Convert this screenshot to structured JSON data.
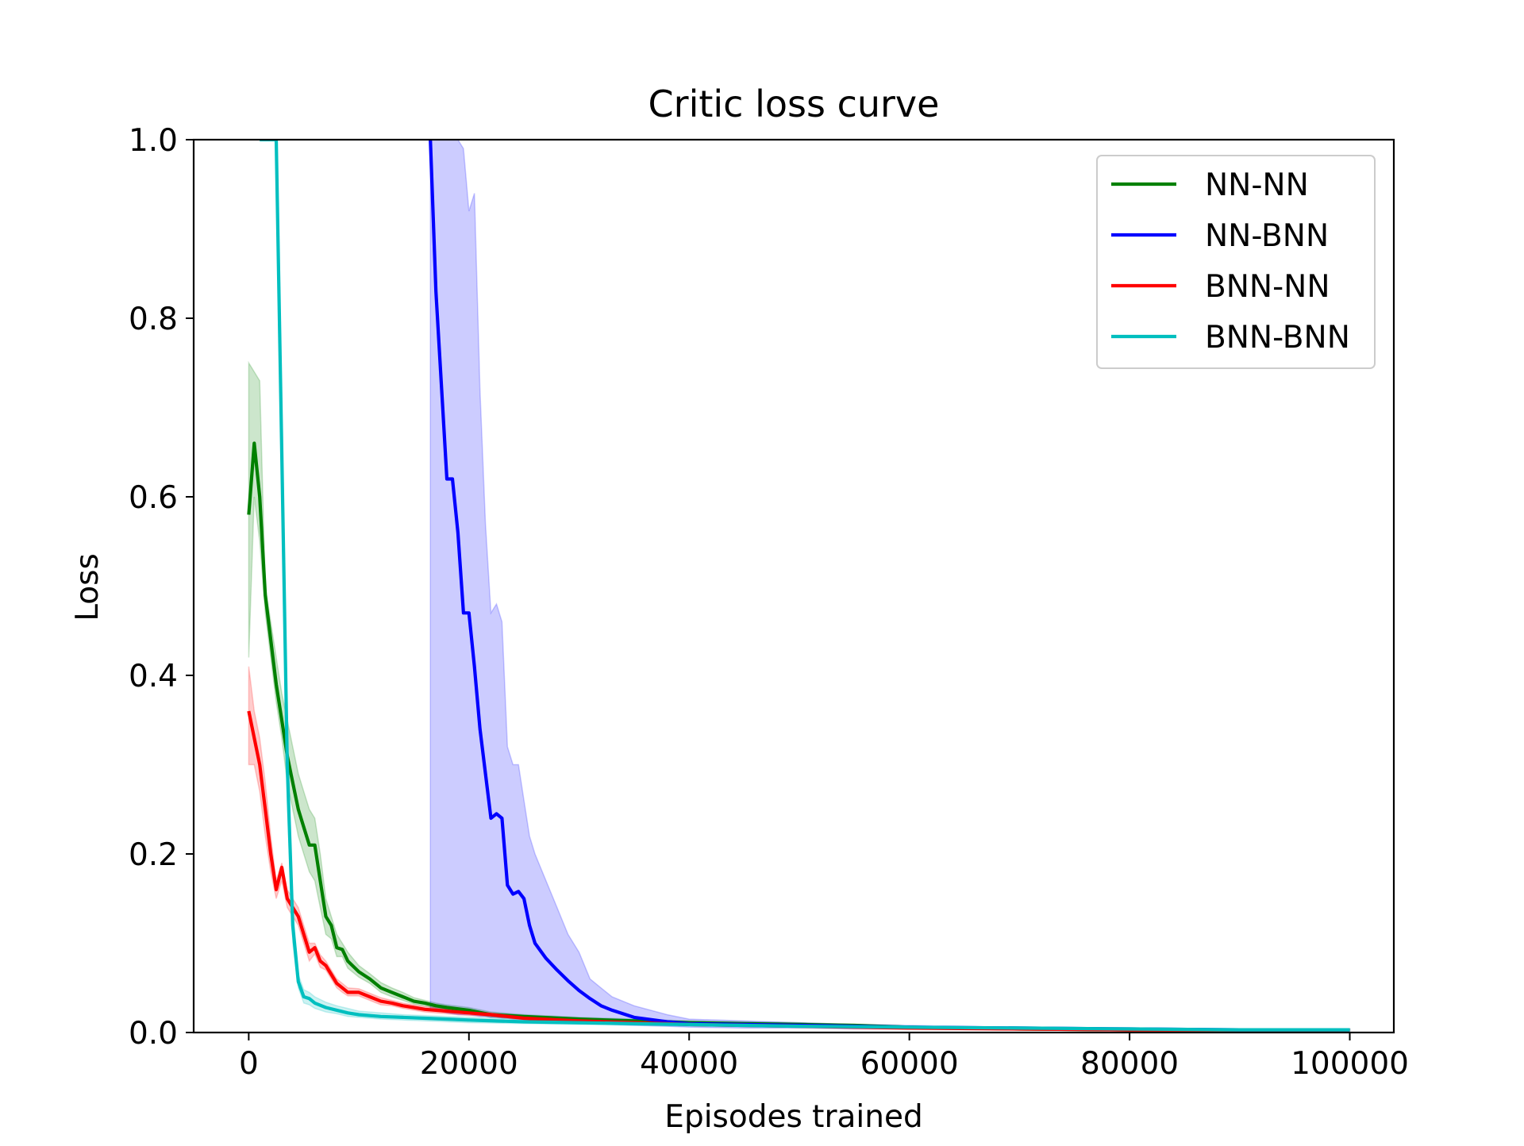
{
  "chart_data": {
    "type": "line",
    "title": "Critic loss curve",
    "xlabel": "Episodes trained",
    "ylabel": "Loss",
    "xlim": [
      -5000,
      104000
    ],
    "ylim": [
      0,
      1.0
    ],
    "xticks": [
      0,
      20000,
      40000,
      60000,
      80000,
      100000
    ],
    "xtick_labels": [
      "0",
      "20000",
      "40000",
      "60000",
      "80000",
      "100000"
    ],
    "yticks": [
      0,
      0.2,
      0.4,
      0.6,
      0.8,
      1.0
    ],
    "ytick_labels": [
      "0.0",
      "0.2",
      "0.4",
      "0.6",
      "0.8",
      "1.0"
    ],
    "grid": false,
    "legend_position": "top-right",
    "series": [
      {
        "name": "NN-NN",
        "color": "#008000",
        "x": [
          0,
          500,
          1000,
          1500,
          2000,
          2500,
          3000,
          3500,
          4000,
          4500,
          5000,
          5500,
          6000,
          6500,
          7000,
          7500,
          8000,
          8500,
          9000,
          10000,
          11000,
          12000,
          13000,
          14000,
          15000,
          16000,
          17000,
          18000,
          20000,
          22000,
          25000,
          30000,
          35000,
          40000,
          45000,
          50000,
          55000,
          60000,
          65000,
          70000,
          80000,
          90000,
          100000
        ],
        "y": [
          0.58,
          0.66,
          0.6,
          0.49,
          0.44,
          0.39,
          0.35,
          0.31,
          0.28,
          0.25,
          0.23,
          0.21,
          0.21,
          0.17,
          0.13,
          0.12,
          0.095,
          0.093,
          0.08,
          0.068,
          0.06,
          0.05,
          0.045,
          0.04,
          0.035,
          0.033,
          0.03,
          0.028,
          0.025,
          0.02,
          0.018,
          0.015,
          0.013,
          0.011,
          0.01,
          0.009,
          0.008,
          0.006,
          0.005,
          0.004,
          0.003,
          0.003,
          0.003
        ],
        "upper": [
          0.75,
          0.74,
          0.73,
          0.5,
          0.46,
          0.42,
          0.38,
          0.35,
          0.32,
          0.29,
          0.27,
          0.25,
          0.24,
          0.2,
          0.15,
          0.13,
          0.11,
          0.1,
          0.09,
          0.075,
          0.066,
          0.056,
          0.05,
          0.045,
          0.039,
          0.036,
          0.033,
          0.031,
          0.028,
          0.023,
          0.02,
          0.017,
          0.015,
          0.013,
          0.012,
          0.011,
          0.009,
          0.007,
          0.006,
          0.005,
          0.004,
          0.004,
          0.004
        ],
        "lower": [
          0.42,
          0.6,
          0.55,
          0.47,
          0.42,
          0.37,
          0.33,
          0.28,
          0.25,
          0.22,
          0.2,
          0.18,
          0.17,
          0.14,
          0.11,
          0.105,
          0.085,
          0.085,
          0.072,
          0.062,
          0.055,
          0.045,
          0.04,
          0.036,
          0.032,
          0.03,
          0.027,
          0.025,
          0.022,
          0.017,
          0.016,
          0.013,
          0.011,
          0.009,
          0.008,
          0.007,
          0.006,
          0.005,
          0.004,
          0.003,
          0.002,
          0.002,
          0.002
        ]
      },
      {
        "name": "NN-BNN",
        "color": "#0000ff",
        "x": [
          16500,
          17000,
          18000,
          18500,
          19000,
          19500,
          20000,
          20500,
          21000,
          21500,
          22000,
          22500,
          23000,
          23500,
          24000,
          24500,
          25000,
          25500,
          26000,
          27000,
          28000,
          29000,
          30000,
          31000,
          32000,
          33000,
          35000,
          38000,
          40000,
          45000,
          50000,
          55000,
          60000,
          70000,
          80000,
          90000,
          100000
        ],
        "y": [
          1.0,
          0.83,
          0.62,
          0.62,
          0.56,
          0.47,
          0.47,
          0.41,
          0.34,
          0.29,
          0.24,
          0.245,
          0.24,
          0.165,
          0.155,
          0.158,
          0.15,
          0.12,
          0.1,
          0.083,
          0.07,
          0.058,
          0.047,
          0.038,
          0.03,
          0.025,
          0.017,
          0.012,
          0.01,
          0.009,
          0.008,
          0.007,
          0.006,
          0.005,
          0.004,
          0.003,
          0.003
        ],
        "upper": [
          1.0,
          1.0,
          1.0,
          1.0,
          1.0,
          0.99,
          0.92,
          0.94,
          0.72,
          0.57,
          0.47,
          0.48,
          0.46,
          0.32,
          0.3,
          0.3,
          0.26,
          0.22,
          0.2,
          0.17,
          0.14,
          0.11,
          0.09,
          0.06,
          0.05,
          0.04,
          0.03,
          0.02,
          0.015,
          0.013,
          0.011,
          0.009,
          0.008,
          0.006,
          0.005,
          0.004,
          0.004
        ],
        "lower": [
          0.025,
          0.025,
          0.022,
          0.021,
          0.02,
          0.02,
          0.02,
          0.019,
          0.018,
          0.018,
          0.017,
          0.017,
          0.016,
          0.016,
          0.015,
          0.015,
          0.014,
          0.014,
          0.013,
          0.012,
          0.012,
          0.011,
          0.011,
          0.01,
          0.01,
          0.009,
          0.008,
          0.007,
          0.006,
          0.005,
          0.005,
          0.004,
          0.004,
          0.003,
          0.002,
          0.002,
          0.002
        ]
      },
      {
        "name": "BNN-NN",
        "color": "#ff0000",
        "x": [
          0,
          500,
          1000,
          1500,
          2000,
          2500,
          3000,
          3500,
          4000,
          4500,
          5000,
          5500,
          6000,
          6500,
          7000,
          7500,
          8000,
          8500,
          9000,
          10000,
          11000,
          12000,
          13000,
          14000,
          15000,
          16000,
          18000,
          20000,
          22000,
          25000,
          30000,
          35000,
          40000,
          45000,
          50000,
          55000,
          60000,
          70000,
          80000,
          90000,
          100000
        ],
        "y": [
          0.36,
          0.33,
          0.3,
          0.25,
          0.2,
          0.16,
          0.185,
          0.15,
          0.14,
          0.13,
          0.11,
          0.09,
          0.095,
          0.08,
          0.075,
          0.065,
          0.055,
          0.05,
          0.045,
          0.045,
          0.04,
          0.035,
          0.033,
          0.03,
          0.028,
          0.026,
          0.024,
          0.022,
          0.02,
          0.016,
          0.013,
          0.011,
          0.009,
          0.008,
          0.007,
          0.006,
          0.005,
          0.004,
          0.003,
          0.003,
          0.003
        ],
        "upper": [
          0.41,
          0.36,
          0.33,
          0.28,
          0.22,
          0.17,
          0.19,
          0.16,
          0.15,
          0.14,
          0.12,
          0.1,
          0.1,
          0.087,
          0.08,
          0.07,
          0.06,
          0.055,
          0.05,
          0.049,
          0.044,
          0.039,
          0.036,
          0.033,
          0.031,
          0.029,
          0.027,
          0.025,
          0.022,
          0.018,
          0.015,
          0.012,
          0.01,
          0.009,
          0.008,
          0.007,
          0.006,
          0.005,
          0.004,
          0.004,
          0.004
        ],
        "lower": [
          0.3,
          0.3,
          0.27,
          0.22,
          0.18,
          0.15,
          0.17,
          0.14,
          0.13,
          0.12,
          0.1,
          0.08,
          0.088,
          0.073,
          0.07,
          0.06,
          0.05,
          0.045,
          0.041,
          0.041,
          0.036,
          0.031,
          0.03,
          0.027,
          0.025,
          0.023,
          0.021,
          0.019,
          0.018,
          0.014,
          0.011,
          0.009,
          0.008,
          0.007,
          0.006,
          0.005,
          0.004,
          0.003,
          0.002,
          0.002,
          0.002
        ]
      },
      {
        "name": "BNN-BNN",
        "color": "#00bfbf",
        "x": [
          1000,
          1500,
          2000,
          2500,
          3000,
          3500,
          4000,
          4500,
          5000,
          5500,
          6000,
          7000,
          8000,
          9000,
          10000,
          12000,
          14000,
          16000,
          18000,
          20000,
          25000,
          30000,
          35000,
          40000,
          50000,
          60000,
          70000,
          80000,
          90000,
          100000
        ],
        "y": [
          1.0,
          1.0,
          1.0,
          1.0,
          0.65,
          0.3,
          0.12,
          0.057,
          0.04,
          0.038,
          0.033,
          0.028,
          0.025,
          0.022,
          0.02,
          0.018,
          0.017,
          0.016,
          0.015,
          0.014,
          0.012,
          0.011,
          0.01,
          0.009,
          0.007,
          0.006,
          0.005,
          0.004,
          0.003,
          0.003
        ],
        "upper": [
          1.0,
          1.0,
          1.0,
          1.0,
          0.7,
          0.34,
          0.14,
          0.065,
          0.048,
          0.045,
          0.04,
          0.034,
          0.03,
          0.027,
          0.024,
          0.022,
          0.02,
          0.019,
          0.018,
          0.017,
          0.015,
          0.013,
          0.012,
          0.011,
          0.009,
          0.007,
          0.006,
          0.005,
          0.004,
          0.004
        ],
        "lower": [
          1.0,
          1.0,
          1.0,
          1.0,
          0.6,
          0.26,
          0.1,
          0.05,
          0.033,
          0.031,
          0.027,
          0.023,
          0.021,
          0.018,
          0.017,
          0.015,
          0.014,
          0.013,
          0.012,
          0.011,
          0.01,
          0.009,
          0.008,
          0.007,
          0.006,
          0.005,
          0.004,
          0.003,
          0.002,
          0.002
        ]
      }
    ]
  }
}
